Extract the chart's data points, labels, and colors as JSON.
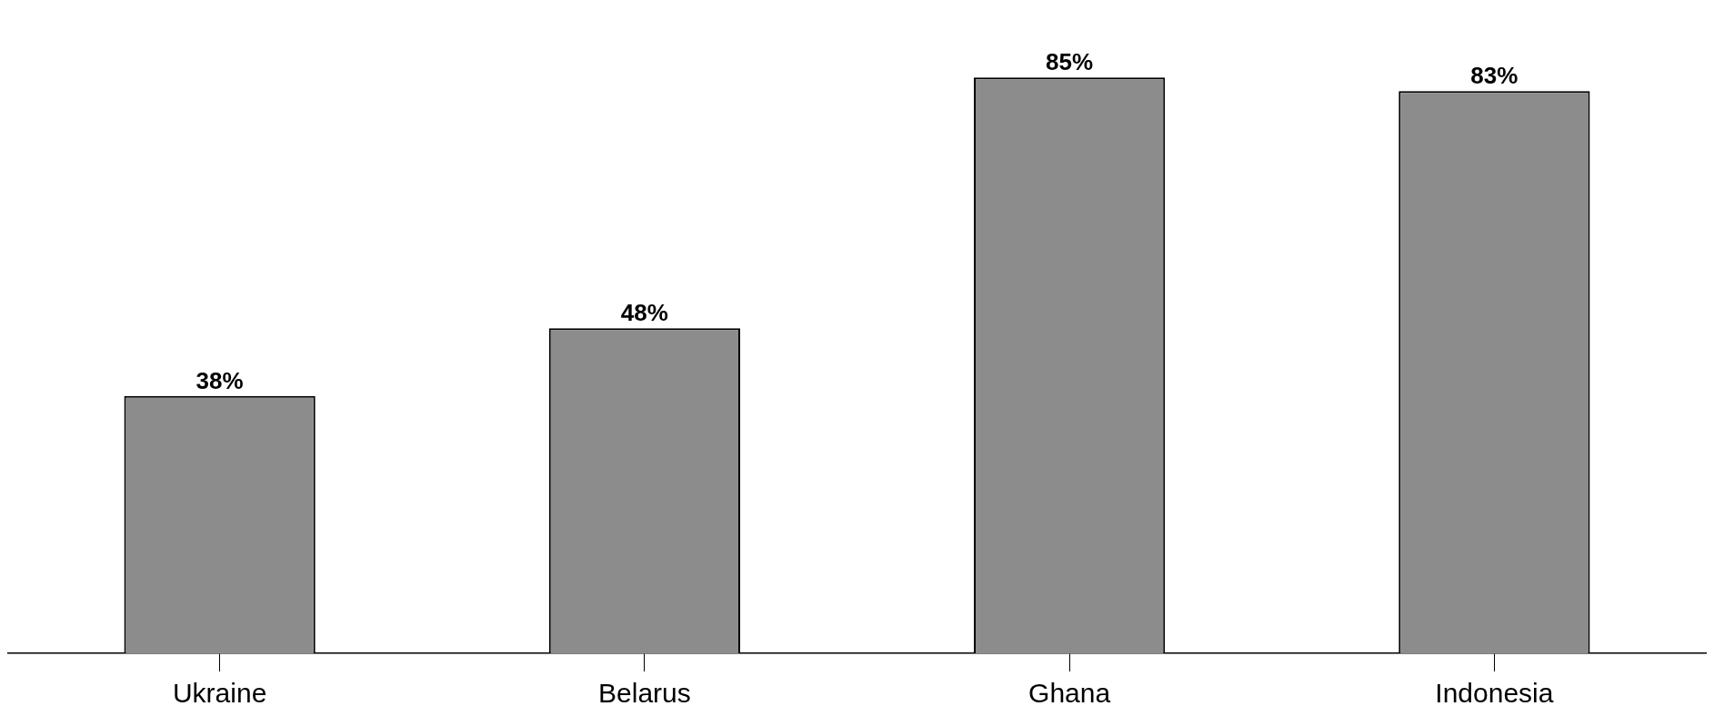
{
  "chart_data": {
    "type": "bar",
    "categories": [
      "Ukraine",
      "Belarus",
      "Ghana",
      "Indonesia"
    ],
    "values": [
      38,
      48,
      85,
      83
    ],
    "value_labels": [
      "38%",
      "48%",
      "85%",
      "83%"
    ],
    "color": "#8c8c8c",
    "grid": false,
    "legend": false
  }
}
